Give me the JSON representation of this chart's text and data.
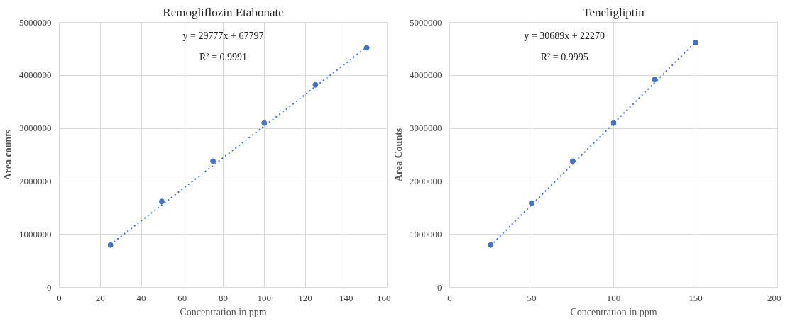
{
  "chart_data": [
    {
      "type": "scatter",
      "title": "Remogliflozin Etabonate",
      "xlabel": "Concentration in ppm",
      "ylabel": "Area counts",
      "xlim": [
        0,
        160
      ],
      "xticks": [
        0,
        20,
        40,
        60,
        80,
        100,
        120,
        140,
        160
      ],
      "ylim": [
        0,
        5000000
      ],
      "yticks": [
        0,
        1000000,
        2000000,
        3000000,
        4000000,
        5000000
      ],
      "grid": true,
      "annotations": [
        "y = 29777x + 67797",
        "R² = 0.9991"
      ],
      "series": [
        {
          "marker": "circle",
          "color": "#4472c4",
          "x": [
            25,
            50,
            75,
            100,
            125,
            150
          ],
          "values": [
            800000,
            1620000,
            2380000,
            3100000,
            3820000,
            4520000
          ]
        },
        {
          "type": "line",
          "marker": "none",
          "line_style": "dotted",
          "color": "#4472c4",
          "x": [
            25,
            150
          ],
          "values": [
            810000,
            4530000
          ]
        }
      ]
    },
    {
      "type": "scatter",
      "title": "Teneligliptin",
      "xlabel": "Concentration in ppm",
      "ylabel": "Area Counts",
      "xlim": [
        0,
        200
      ],
      "xticks": [
        0,
        50,
        100,
        150,
        200
      ],
      "ylim": [
        0,
        5000000
      ],
      "yticks": [
        0,
        1000000,
        2000000,
        3000000,
        4000000,
        5000000
      ],
      "grid": true,
      "annotations": [
        "y = 30689x + 22270",
        "R² = 0.9995"
      ],
      "series": [
        {
          "marker": "circle",
          "color": "#4472c4",
          "x": [
            25,
            50,
            75,
            100,
            125,
            150
          ],
          "values": [
            800000,
            1590000,
            2380000,
            3100000,
            3920000,
            4620000
          ]
        },
        {
          "type": "line",
          "marker": "none",
          "line_style": "dotted",
          "color": "#4472c4",
          "x": [
            25,
            150
          ],
          "values": [
            790000,
            4630000
          ]
        }
      ]
    }
  ]
}
